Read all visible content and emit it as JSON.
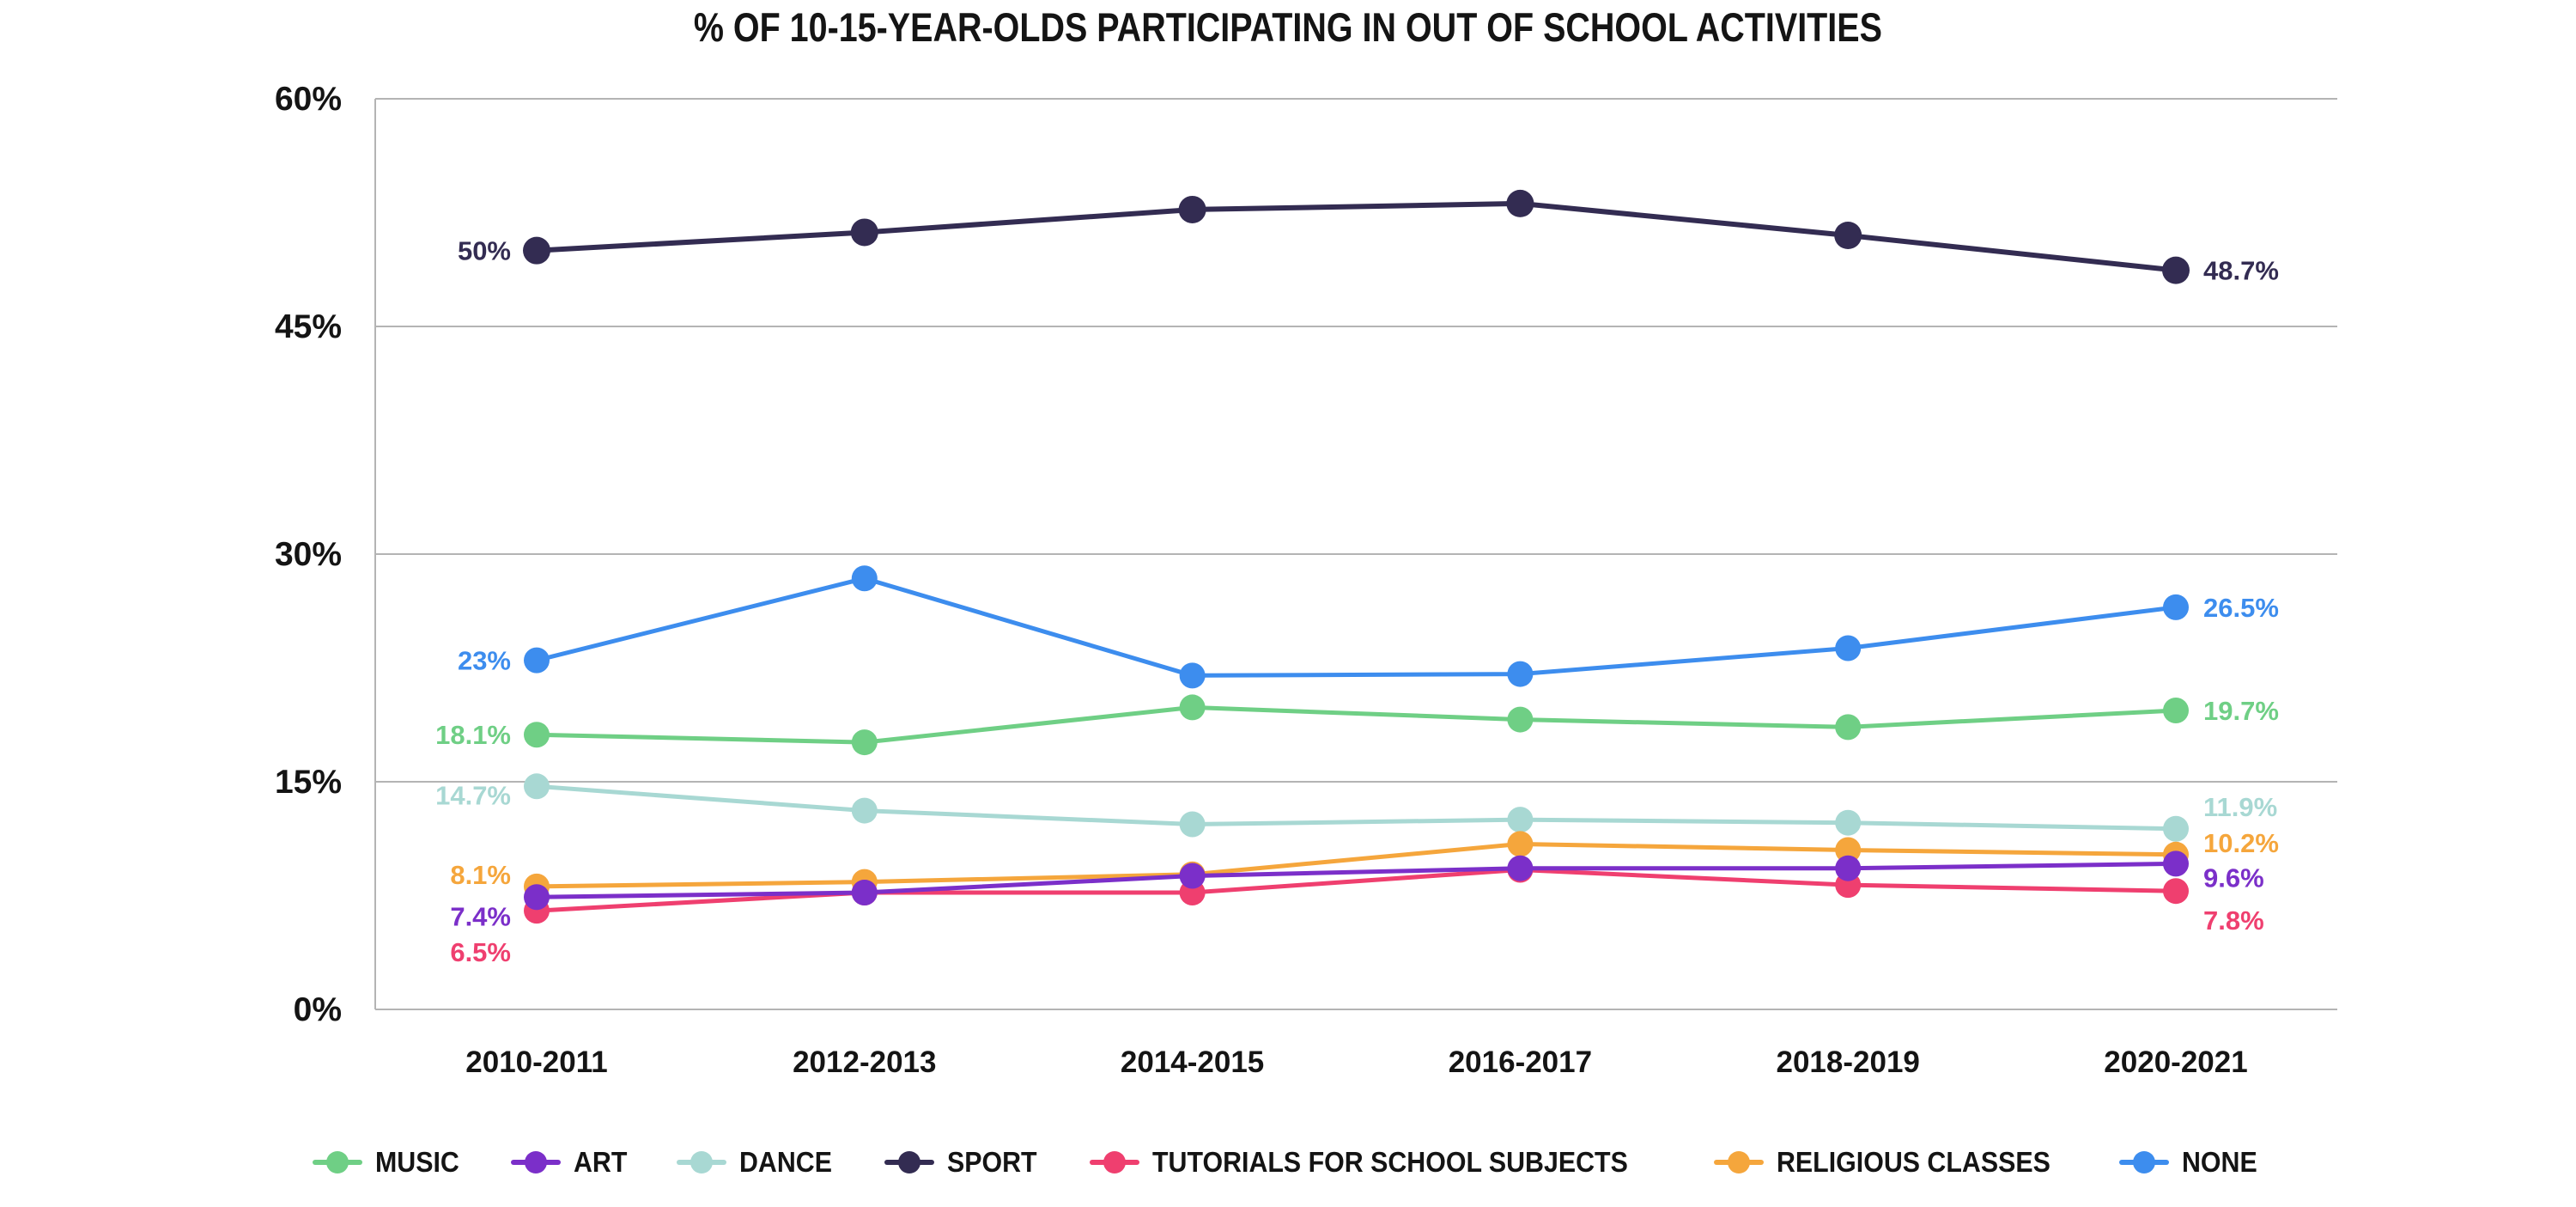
{
  "title": "% OF 10-15-YEAR-OLDS PARTICIPATING IN OUT OF SCHOOL ACTIVITIES",
  "chart_data": {
    "type": "line",
    "categories": [
      "2010-2011",
      "2012-2013",
      "2014-2015",
      "2016-2017",
      "2018-2019",
      "2020-2021"
    ],
    "series": [
      {
        "name": "MUSIC",
        "color": "#6FCF85",
        "values": [
          18.1,
          17.6,
          19.9,
          19.1,
          18.6,
          19.7
        ],
        "start_label": "18.1%",
        "end_label": "19.7%",
        "start_dy": 0,
        "end_dy": 0,
        "marker_r": 15
      },
      {
        "name": "ART",
        "color": "#7B2FC9",
        "values": [
          7.4,
          7.7,
          8.8,
          9.3,
          9.3,
          9.6
        ],
        "start_label": "7.4%",
        "end_label": "9.6%",
        "start_dy": 22,
        "end_dy": 16,
        "marker_r": 15
      },
      {
        "name": "DANCE",
        "color": "#A8D8D3",
        "values": [
          14.7,
          13.1,
          12.2,
          12.5,
          12.3,
          11.9
        ],
        "start_label": "14.7%",
        "end_label": "11.9%",
        "start_dy": 10,
        "end_dy": -26,
        "marker_r": 15
      },
      {
        "name": "SPORT",
        "color": "#332C52",
        "values": [
          50,
          51.2,
          52.7,
          53.1,
          51,
          48.7
        ],
        "start_label": "50%",
        "end_label": "48.7%",
        "start_dy": 0,
        "end_dy": 0,
        "marker_r": 16
      },
      {
        "name": "TUTORIALS FOR SCHOOL SUBJECTS",
        "color": "#EF3F6F",
        "values": [
          6.5,
          7.7,
          7.7,
          9.2,
          8.2,
          7.8
        ],
        "start_label": "6.5%",
        "end_label": "7.8%",
        "start_dy": 48,
        "end_dy": 34,
        "marker_r": 15
      },
      {
        "name": "RELIGIOUS CLASSES",
        "color": "#F5A63C",
        "values": [
          8.1,
          8.4,
          8.9,
          10.9,
          10.5,
          10.2
        ],
        "start_label": "8.1%",
        "end_label": "10.2%",
        "start_dy": -14,
        "end_dy": -14,
        "marker_r": 15
      },
      {
        "name": "NONE",
        "color": "#3D8DEE",
        "values": [
          23,
          28.4,
          22,
          22.1,
          23.8,
          26.5
        ],
        "start_label": "23%",
        "end_label": "26.5%",
        "start_dy": 0,
        "end_dy": 0,
        "marker_r": 15
      }
    ],
    "xlabel": "",
    "ylabel": "",
    "ylim": [
      0,
      60
    ],
    "ytick_step": 15,
    "yticks": [
      "0%",
      "15%",
      "30%",
      "45%",
      "60%"
    ],
    "grid": true,
    "grid_color": "#b4b4b4",
    "legend_position": "bottom",
    "draw_order": [
      0,
      2,
      3,
      6,
      5,
      4,
      1
    ]
  }
}
